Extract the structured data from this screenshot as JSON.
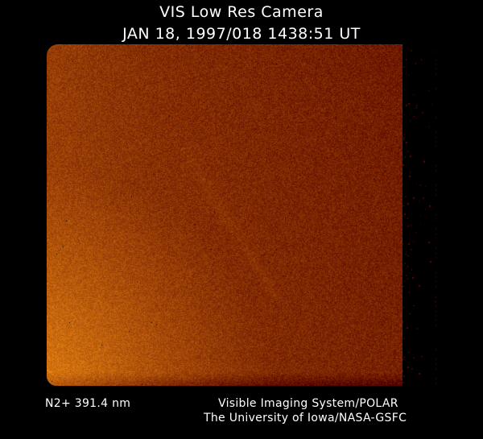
{
  "header": {
    "instrument": "VIS Low Res Camera",
    "timestamp": "JAN 18, 1997/018 1438:51 UT"
  },
  "image": {
    "colormap": [
      "#000000",
      "#5a0a00",
      "#8a2a02",
      "#c0600a",
      "#e08a10"
    ]
  },
  "footer": {
    "filter": "N2+ 391.4 nm",
    "system": "Visible Imaging System/POLAR",
    "institution": "The University of Iowa/NASA-GSFC"
  }
}
